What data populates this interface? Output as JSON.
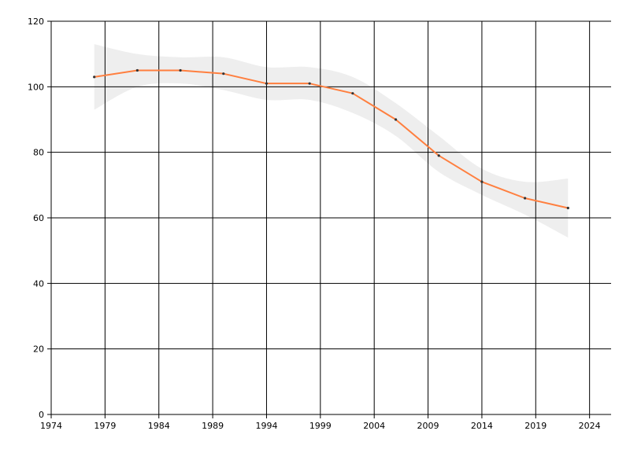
{
  "chart_data": {
    "type": "line",
    "title": "",
    "xlabel": "",
    "ylabel": "",
    "xlim": [
      1974,
      2026
    ],
    "ylim": [
      0,
      120
    ],
    "x_ticks": [
      1974,
      1979,
      1984,
      1989,
      1994,
      1999,
      2004,
      2009,
      2014,
      2019,
      2024
    ],
    "y_ticks": [
      0,
      20,
      40,
      60,
      80,
      100,
      120
    ],
    "grid": true,
    "legend": "none",
    "series": [
      {
        "x": [
          1978,
          1982,
          1986,
          1990,
          1994,
          1998,
          2002,
          2006,
          2010,
          2014,
          2018,
          2022
        ],
        "values": [
          103,
          105,
          105,
          104,
          101,
          101,
          98,
          90,
          79,
          71,
          66,
          63
        ],
        "band_upper": [
          113,
          110,
          109,
          109,
          106,
          106,
          103,
          95,
          85,
          75,
          71,
          72
        ],
        "band_lower": [
          93,
          100,
          101,
          99,
          96,
          96,
          92,
          85,
          74,
          67,
          61,
          54
        ],
        "color": "#ff7f3f",
        "band_color": "#eeeeee",
        "marker_color": "#333333"
      }
    ]
  }
}
